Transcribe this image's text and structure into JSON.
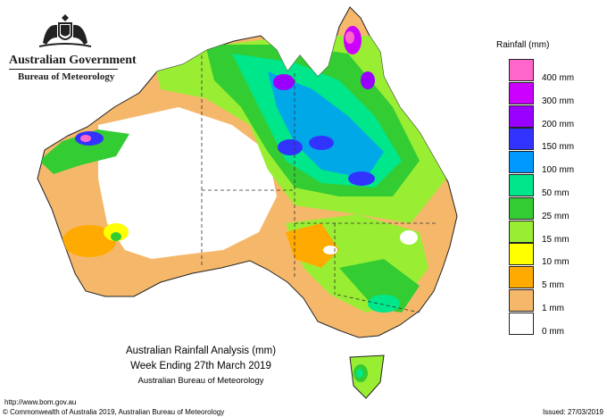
{
  "header": {
    "government": "Australian Government",
    "bureau": "Bureau of Meteorology"
  },
  "legend": {
    "title": "Rainfall (mm)",
    "items": [
      {
        "label": "400 mm",
        "color": "#ff66cc"
      },
      {
        "label": "300 mm",
        "color": "#cc00ff"
      },
      {
        "label": "200 mm",
        "color": "#9900ff"
      },
      {
        "label": "150 mm",
        "color": "#3333ff"
      },
      {
        "label": "100 mm",
        "color": "#0099ff"
      },
      {
        "label": "50 mm",
        "color": "#00e68a"
      },
      {
        "label": "25 mm",
        "color": "#33cc33"
      },
      {
        "label": "15 mm",
        "color": "#99ee33"
      },
      {
        "label": "10 mm",
        "color": "#ffff00"
      },
      {
        "label": "5 mm",
        "color": "#ffaa00"
      },
      {
        "label": "1 mm",
        "color": "#f5b86b"
      },
      {
        "label": "0 mm",
        "color": "#ffffff"
      }
    ]
  },
  "caption": {
    "line1": "Australian Rainfall Analysis (mm)",
    "line2": "Week Ending 27th March 2019",
    "line3": "Australian Bureau of Meteorology"
  },
  "footer": {
    "url": "http://www.bom.gov.au",
    "copyright": "© Commonwealth of Australia 2019, Australian Bureau of Meteorology",
    "issued": "Issued: 27/03/2019"
  }
}
